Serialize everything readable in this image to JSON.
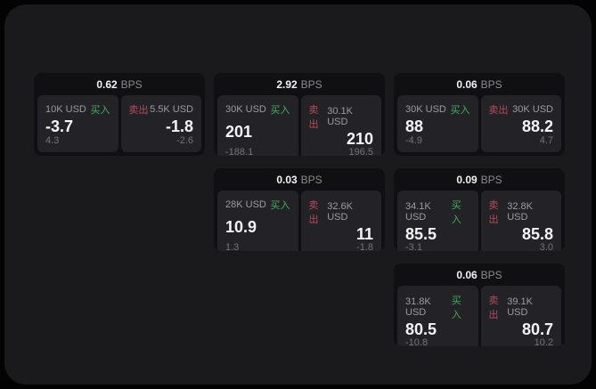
{
  "labels": {
    "buy": "买入",
    "sell": "卖出",
    "bps_suffix": "BPS"
  },
  "colors": {
    "buy_accent": "#3fae5c",
    "sell_accent": "#b84a5e",
    "surface": "#1a1a1c",
    "card": "#101012",
    "panel": "#232327"
  },
  "cards": [
    {
      "bps": "0.62",
      "buy": {
        "amount": "10K USD",
        "price": "-3.7",
        "delta": "4.3"
      },
      "sell": {
        "amount": "5.5K USD",
        "price": "-1.8",
        "delta": "-2.6"
      }
    },
    {
      "bps": "2.92",
      "buy": {
        "amount": "30K USD",
        "price": "201",
        "delta": "-188.1"
      },
      "sell": {
        "amount": "30.1K USD",
        "price": "210",
        "delta": "196.5"
      }
    },
    {
      "bps": "0.06",
      "buy": {
        "amount": "30K USD",
        "price": "88",
        "delta": "-4.9"
      },
      "sell": {
        "amount": "30K USD",
        "price": "88.2",
        "delta": "4.7"
      }
    },
    {
      "bps": "0.03",
      "buy": {
        "amount": "28K USD",
        "price": "10.9",
        "delta": "1.3"
      },
      "sell": {
        "amount": "32.6K USD",
        "price": "11",
        "delta": "-1.8"
      }
    },
    {
      "bps": "0.09",
      "buy": {
        "amount": "34.1K USD",
        "price": "85.5",
        "delta": "-3.1"
      },
      "sell": {
        "amount": "32.8K USD",
        "price": "85.8",
        "delta": "3.0"
      }
    },
    {
      "bps": "0.06",
      "buy": {
        "amount": "31.8K USD",
        "price": "80.5",
        "delta": "-10.8"
      },
      "sell": {
        "amount": "39.1K USD",
        "price": "80.7",
        "delta": "10.2"
      }
    }
  ]
}
